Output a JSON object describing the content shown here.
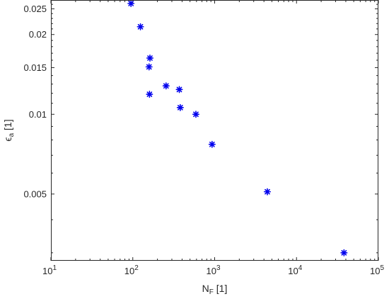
{
  "chart_data": {
    "type": "scatter",
    "title": "",
    "xlabel": {
      "base": "N",
      "sub": "F",
      "unit": " [1]"
    },
    "ylabel": {
      "base": "ϵ",
      "sub": "a",
      "unit": " [1]"
    },
    "xscale": "log",
    "yscale": "log",
    "xlim": [
      10,
      100000
    ],
    "ylim": [
      0.0028,
      0.027
    ],
    "grid": false,
    "legend": "none",
    "marker": "asterisk",
    "marker_color": "#0000ee",
    "x_ticks": [
      {
        "value": 10,
        "base": "10",
        "exp": "1"
      },
      {
        "value": 100,
        "base": "10",
        "exp": "2"
      },
      {
        "value": 1000,
        "base": "10",
        "exp": "3"
      },
      {
        "value": 10000,
        "base": "10",
        "exp": "4"
      },
      {
        "value": 100000,
        "base": "10",
        "exp": "5"
      }
    ],
    "y_ticks": [
      {
        "value": 0.005,
        "label": "0.005"
      },
      {
        "value": 0.01,
        "label": "0.01"
      },
      {
        "value": 0.015,
        "label": "0.015"
      },
      {
        "value": 0.02,
        "label": "0.02"
      },
      {
        "value": 0.025,
        "label": "0.025"
      }
    ],
    "series": [
      {
        "points": [
          {
            "x": 95,
            "y": 0.0262
          },
          {
            "x": 124,
            "y": 0.0214
          },
          {
            "x": 162,
            "y": 0.0163
          },
          {
            "x": 158,
            "y": 0.0151
          },
          {
            "x": 160,
            "y": 0.0119
          },
          {
            "x": 255,
            "y": 0.0128
          },
          {
            "x": 370,
            "y": 0.0124
          },
          {
            "x": 380,
            "y": 0.0106
          },
          {
            "x": 590,
            "y": 0.01
          },
          {
            "x": 930,
            "y": 0.0077
          },
          {
            "x": 4400,
            "y": 0.0051
          },
          {
            "x": 38000,
            "y": 0.003
          }
        ]
      }
    ]
  }
}
